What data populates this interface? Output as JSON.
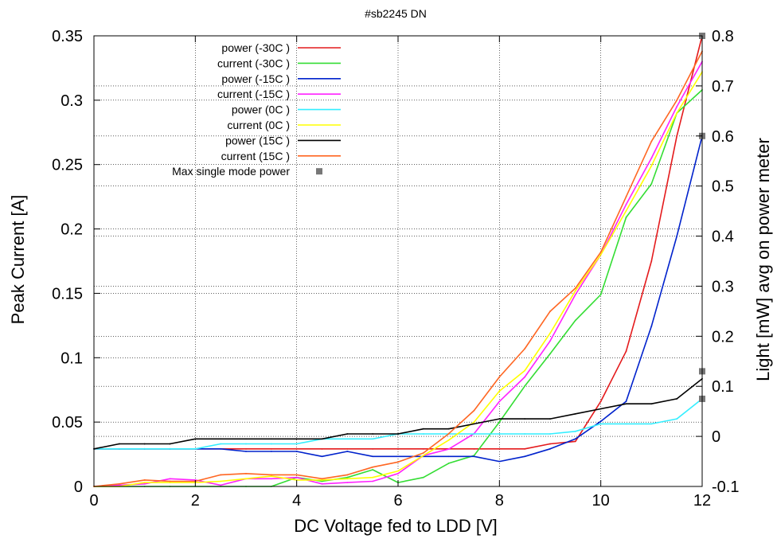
{
  "chart_data": {
    "type": "line",
    "title": "#sb2245 DN",
    "xlabel": "DC Voltage fed to LDD [V]",
    "ylabel": "Peak Current [A]",
    "y2label": "Light [mW] avg on power meter",
    "xlim": [
      0,
      12
    ],
    "ylim": [
      0,
      0.35
    ],
    "y2lim": [
      -0.1,
      0.8
    ],
    "x_ticks": [
      "0",
      "2",
      "4",
      "6",
      "8",
      "10",
      "12"
    ],
    "y_ticks": [
      "0",
      "0.05",
      "0.1",
      "0.15",
      "0.2",
      "0.25",
      "0.3",
      "0.35"
    ],
    "y2_ticks": [
      "-0.1",
      "0",
      "0.1",
      "0.2",
      "0.3",
      "0.4",
      "0.5",
      "0.6",
      "0.7",
      "0.8"
    ],
    "grid": true,
    "legend_position": "top-left",
    "x": [
      0,
      0.5,
      1,
      1.5,
      2,
      2.5,
      3,
      3.5,
      4,
      4.5,
      5,
      5.5,
      6,
      6.5,
      7,
      7.5,
      8,
      8.5,
      9,
      9.5,
      10,
      10.5,
      11,
      11.5,
      12
    ],
    "series": [
      {
        "name": "power (-30C )",
        "axis": "y2",
        "color": "#e41a1c",
        "values": [
          -0.025,
          -0.025,
          -0.025,
          -0.025,
          -0.025,
          -0.025,
          -0.025,
          -0.025,
          -0.025,
          -0.025,
          -0.025,
          -0.025,
          -0.025,
          -0.025,
          -0.025,
          -0.025,
          -0.025,
          -0.025,
          -0.015,
          -0.01,
          0.07,
          0.17,
          0.35,
          0.6,
          0.8
        ]
      },
      {
        "name": "current (-30C )",
        "axis": "y",
        "color": "#33dd33",
        "values": [
          0,
          0,
          0,
          0,
          0,
          0,
          0,
          0,
          0.007,
          0.004,
          0.007,
          0.013,
          0.003,
          0.007,
          0.018,
          0.024,
          0.05,
          0.078,
          0.103,
          0.129,
          0.149,
          0.209,
          0.235,
          0.29,
          0.308
        ]
      },
      {
        "name": "power (-15C )",
        "axis": "y2",
        "color": "#0022cc",
        "values": [
          -0.025,
          -0.025,
          -0.025,
          -0.025,
          -0.025,
          -0.025,
          -0.03,
          -0.03,
          -0.03,
          -0.04,
          -0.03,
          -0.04,
          -0.04,
          -0.04,
          -0.04,
          -0.04,
          -0.05,
          -0.04,
          -0.025,
          -0.005,
          0.03,
          0.07,
          0.22,
          0.4,
          0.6
        ]
      },
      {
        "name": "current (-15C )",
        "axis": "y",
        "color": "#ff22ff",
        "values": [
          0,
          0.001,
          0.002,
          0.006,
          0.005,
          0.001,
          0.006,
          0.006,
          0.007,
          0.002,
          0.003,
          0.004,
          0.01,
          0.024,
          0.029,
          0.041,
          0.066,
          0.085,
          0.113,
          0.149,
          0.18,
          0.219,
          0.255,
          0.295,
          0.33
        ]
      },
      {
        "name": "power (0C )",
        "axis": "y2",
        "color": "#33eeff",
        "values": [
          -0.025,
          -0.025,
          -0.025,
          -0.025,
          -0.025,
          -0.015,
          -0.015,
          -0.015,
          -0.015,
          -0.005,
          -0.005,
          -0.005,
          0.005,
          0.005,
          0.005,
          0.005,
          0.005,
          0.005,
          0.005,
          0.01,
          0.025,
          0.025,
          0.025,
          0.035,
          0.075
        ]
      },
      {
        "name": "current (0C )",
        "axis": "y",
        "color": "#ffff00",
        "values": [
          0,
          0,
          0.003,
          0.003,
          0.003,
          0.004,
          0.006,
          0.008,
          0.005,
          0.005,
          0.006,
          0.007,
          0.012,
          0.024,
          0.036,
          0.05,
          0.074,
          0.09,
          0.119,
          0.152,
          0.18,
          0.214,
          0.249,
          0.29,
          0.322
        ]
      },
      {
        "name": "power (15C )",
        "axis": "y2",
        "color": "#000000",
        "values": [
          -0.025,
          -0.015,
          -0.015,
          -0.015,
          -0.005,
          -0.005,
          -0.005,
          -0.005,
          -0.005,
          -0.005,
          0.005,
          0.005,
          0.005,
          0.015,
          0.015,
          0.025,
          0.035,
          0.035,
          0.035,
          0.045,
          0.055,
          0.065,
          0.065,
          0.075,
          0.115
        ]
      },
      {
        "name": "current (15C )",
        "axis": "y",
        "color": "#ff6622",
        "values": [
          0,
          0.002,
          0.005,
          0.004,
          0.004,
          0.009,
          0.01,
          0.009,
          0.009,
          0.006,
          0.009,
          0.015,
          0.019,
          0.026,
          0.041,
          0.059,
          0.085,
          0.107,
          0.136,
          0.154,
          0.182,
          0.225,
          0.268,
          0.3,
          0.338
        ]
      }
    ],
    "markers": {
      "name": "Max single mode power",
      "axis": "y2",
      "color": "#777777",
      "points": [
        {
          "x": 12,
          "y": 0.8
        },
        {
          "x": 12,
          "y": 0.6
        },
        {
          "x": 12,
          "y": 0.13
        },
        {
          "x": 12,
          "y": 0.075
        }
      ]
    }
  }
}
